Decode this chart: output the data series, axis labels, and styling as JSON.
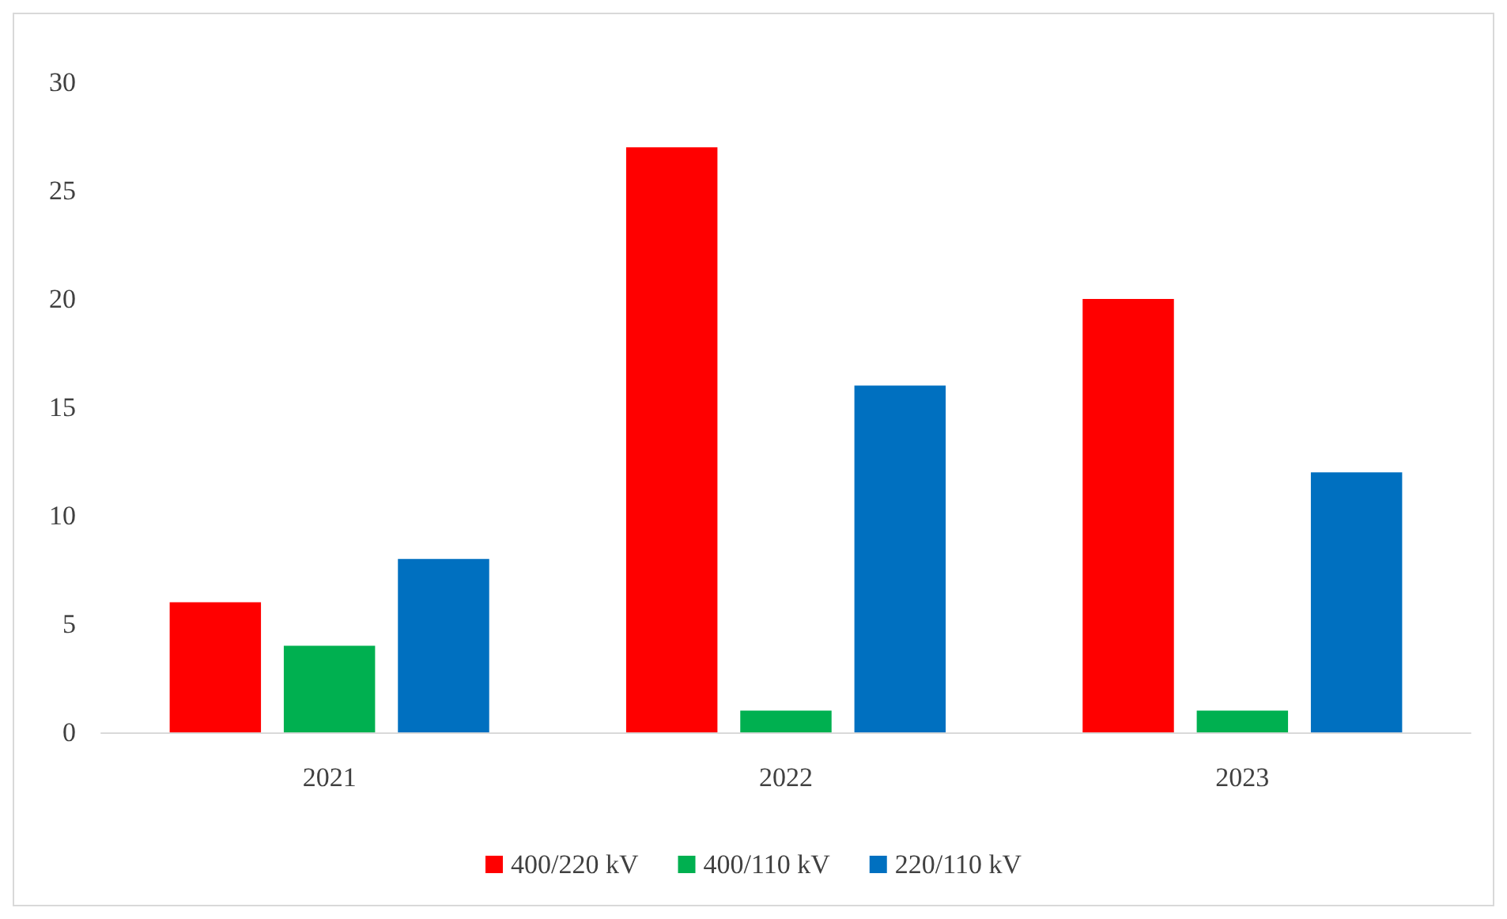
{
  "chart_data": {
    "type": "bar",
    "categories": [
      "2021",
      "2022",
      "2023"
    ],
    "series": [
      {
        "name": "400/220 kV",
        "color": "#ff0000",
        "values": [
          6,
          27,
          20
        ]
      },
      {
        "name": "400/110 kV",
        "color": "#00b050",
        "values": [
          4,
          1,
          1
        ]
      },
      {
        "name": "220/110 kV",
        "color": "#0070c0",
        "values": [
          8,
          16,
          12
        ]
      }
    ],
    "ylim": [
      0,
      30
    ],
    "yticks": [
      0,
      5,
      10,
      15,
      20,
      25,
      30
    ],
    "grid": false,
    "legend": "bottom"
  }
}
